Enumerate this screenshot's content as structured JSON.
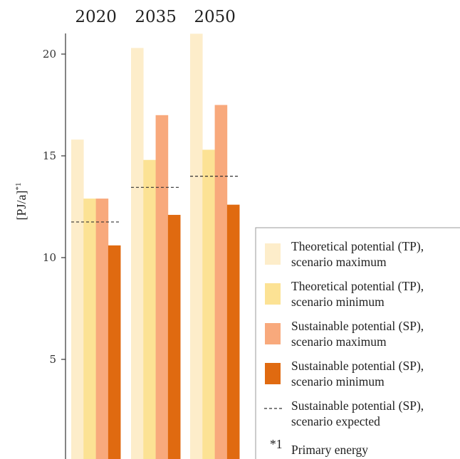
{
  "chart_data": {
    "type": "bar",
    "categories": [
      "2020",
      "2035",
      "2050"
    ],
    "ylabel": "[PJ/a]",
    "ylabel_superscript": "*1",
    "yticks": [
      5,
      10,
      15,
      20
    ],
    "ylim": [
      0,
      21
    ],
    "series": [
      {
        "name_lines": [
          "Theoretical potential (TP),",
          "scenario maximum"
        ],
        "color": "#FDEDCA",
        "values": [
          15.8,
          20.3,
          21.0
        ]
      },
      {
        "name_lines": [
          "Theoretical potential (TP),",
          "scenario minimum"
        ],
        "color": "#FCE294",
        "values": [
          12.9,
          14.8,
          15.3
        ]
      },
      {
        "name_lines": [
          "Sustainable potential (SP),",
          "scenario maximum"
        ],
        "color": "#F8A97C",
        "values": [
          12.9,
          17.0,
          17.5
        ]
      },
      {
        "name_lines": [
          "Sustainable potential (SP),",
          "scenario minimum"
        ],
        "color": "#E06A10",
        "values": [
          10.6,
          12.1,
          12.6
        ]
      }
    ],
    "expected": {
      "name_lines": [
        "Sustainable potential (SP),",
        "scenario expected"
      ],
      "values": [
        11.75,
        13.45,
        14.0
      ],
      "style": "dashed",
      "color": "#333333"
    },
    "footnote": {
      "marker": "*1",
      "text": "Primary energy"
    },
    "legend_position": "bottom-right"
  }
}
